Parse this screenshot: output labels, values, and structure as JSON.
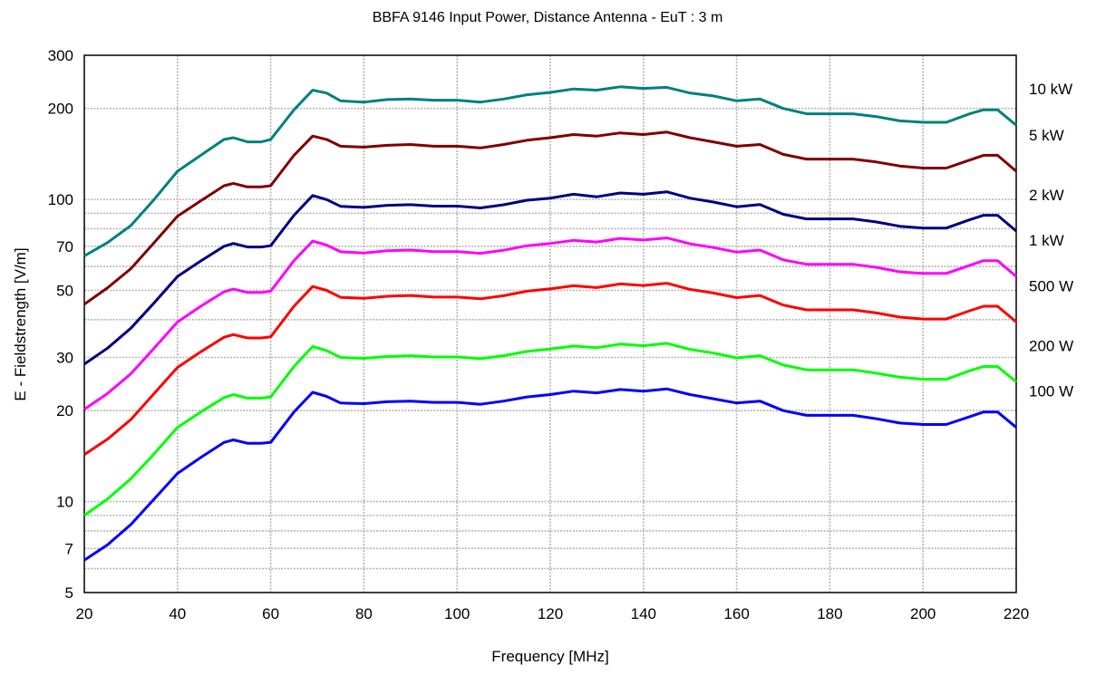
{
  "chart_data": {
    "type": "line",
    "title": "BBFA 9146 Input Power, Distance Antenna - EuT : 3 m",
    "xlabel": "Frequency [MHz]",
    "ylabel": "E - Fieldstrength [V/m]",
    "xlim": [
      20,
      220
    ],
    "ylim": [
      5,
      300
    ],
    "yscale": "log",
    "grid": true,
    "x_ticks": [
      20,
      40,
      60,
      80,
      100,
      120,
      140,
      160,
      180,
      200,
      220
    ],
    "y_ticks": [
      5,
      7,
      10,
      20,
      30,
      50,
      70,
      100,
      200,
      300
    ],
    "y_minor_gridlines": [
      6,
      8,
      9,
      40,
      60,
      80,
      90
    ],
    "x": [
      20,
      25,
      30,
      35,
      40,
      45,
      50,
      52,
      55,
      58,
      60,
      65,
      69,
      72,
      75,
      80,
      85,
      90,
      95,
      100,
      105,
      110,
      115,
      120,
      125,
      130,
      135,
      140,
      145,
      150,
      155,
      160,
      165,
      170,
      175,
      180,
      185,
      190,
      195,
      200,
      205,
      210,
      213,
      216,
      220
    ],
    "series": [
      {
        "name": "10 kW",
        "color": "#008080",
        "values": [
          65,
          72,
          82,
          100,
          124,
          140,
          158,
          160,
          155,
          155,
          158,
          198,
          230,
          225,
          212,
          210,
          214,
          215,
          213,
          213,
          210,
          215,
          222,
          226,
          232,
          230,
          236,
          233,
          235,
          225,
          220,
          212,
          215,
          200,
          192,
          192,
          192,
          188,
          182,
          180,
          180,
          192,
          198,
          198,
          176
        ]
      },
      {
        "name": "5 kW",
        "color": "#800000",
        "values": [
          45,
          51,
          59,
          72,
          88,
          99,
          111,
          113,
          110,
          110,
          111,
          140,
          162,
          158,
          150,
          149,
          151,
          152,
          150,
          150,
          148,
          152,
          157,
          160,
          164,
          162,
          166,
          164,
          167,
          160,
          155,
          150,
          152,
          141,
          136,
          136,
          136,
          133,
          129,
          127,
          127,
          135,
          140,
          140,
          124
        ]
      },
      {
        "name": "2 kW",
        "color": "#000080",
        "values": [
          28.5,
          32.2,
          37.5,
          45.5,
          55.6,
          62.6,
          70,
          71.5,
          69.6,
          69.6,
          70.3,
          88.6,
          103,
          99.9,
          94.9,
          94.1,
          95.6,
          96.1,
          95,
          95,
          93.7,
          96,
          99.4,
          101,
          104,
          102,
          105,
          104,
          106,
          101,
          98,
          94.6,
          96.2,
          89.3,
          86.2,
          86.2,
          86.2,
          84.2,
          81.5,
          80.4,
          80.4,
          85.6,
          88.6,
          88.6,
          78.6
        ]
      },
      {
        "name": "1 kW",
        "color": "#ff00ff",
        "values": [
          20.2,
          22.8,
          26.5,
          32.2,
          39.3,
          44.3,
          49.5,
          50.5,
          49.2,
          49.2,
          49.7,
          62.7,
          72.8,
          70.6,
          67.1,
          66.5,
          67.6,
          68,
          67.2,
          67.2,
          66.3,
          67.9,
          70.3,
          71.5,
          73.2,
          72.3,
          74.3,
          73.4,
          74.6,
          71.3,
          69.3,
          66.9,
          68,
          63.1,
          61,
          61,
          61,
          59.6,
          57.6,
          56.9,
          56.9,
          60.5,
          62.7,
          62.7,
          55.6
        ]
      },
      {
        "name": "500 W",
        "color": "#ff0000",
        "values": [
          14.3,
          16.1,
          18.7,
          22.8,
          27.8,
          31.3,
          35,
          35.7,
          34.8,
          34.8,
          35.1,
          44.3,
          51.5,
          50,
          47.4,
          47.1,
          47.8,
          48.1,
          47.5,
          47.5,
          46.9,
          48,
          49.7,
          50.6,
          51.8,
          51.1,
          52.5,
          51.9,
          52.8,
          50.4,
          49,
          47.3,
          48.1,
          44.7,
          43.1,
          43.1,
          43.1,
          42.1,
          40.8,
          40.2,
          40.2,
          42.8,
          44.3,
          44.3,
          39.3
        ]
      },
      {
        "name": "200 W",
        "color": "#00ff00",
        "values": [
          9,
          10.2,
          11.9,
          14.4,
          17.6,
          19.8,
          22.1,
          22.6,
          22,
          22,
          22.2,
          28,
          32.6,
          31.6,
          30,
          29.8,
          30.2,
          30.4,
          30.1,
          30.1,
          29.7,
          30.4,
          31.4,
          32,
          32.7,
          32.3,
          33.2,
          32.8,
          33.4,
          31.9,
          31,
          29.9,
          30.4,
          28.3,
          27.3,
          27.3,
          27.3,
          26.6,
          25.8,
          25.4,
          25.4,
          27.1,
          28,
          28,
          24.9
        ]
      },
      {
        "name": "100 W",
        "color": "#0000ff",
        "values": [
          6.4,
          7.2,
          8.4,
          10.2,
          12.4,
          14,
          15.7,
          16,
          15.6,
          15.6,
          15.7,
          19.8,
          23,
          22.3,
          21.2,
          21.1,
          21.4,
          21.5,
          21.3,
          21.3,
          21,
          21.5,
          22.2,
          22.6,
          23.2,
          22.9,
          23.5,
          23.2,
          23.6,
          22.6,
          21.9,
          21.2,
          21.5,
          20,
          19.3,
          19.3,
          19.3,
          18.8,
          18.2,
          18,
          18,
          19.1,
          19.8,
          19.8,
          17.6
        ]
      }
    ]
  }
}
